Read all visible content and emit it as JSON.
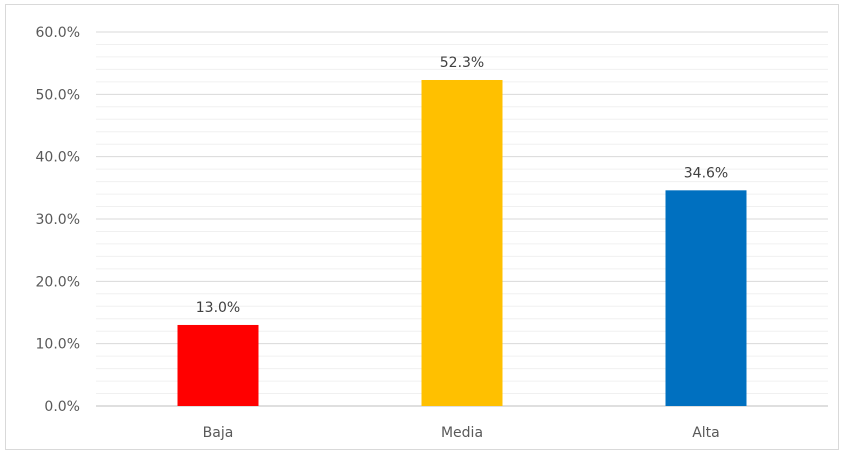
{
  "chart_data": {
    "type": "bar",
    "categories": [
      "Baja",
      "Media",
      "Alta"
    ],
    "values": [
      13.0,
      52.3,
      34.6
    ],
    "data_labels": [
      "13.0%",
      "52.3%",
      "34.6%"
    ],
    "colors": [
      "#ff0000",
      "#ffc000",
      "#0070c0"
    ],
    "title": "",
    "xlabel": "",
    "ylabel": "",
    "ylim": [
      0,
      60
    ],
    "y_ticks": [
      {
        "value": 0,
        "label": "0.0%"
      },
      {
        "value": 10,
        "label": "10.0%"
      },
      {
        "value": 20,
        "label": "20.0%"
      },
      {
        "value": 30,
        "label": "30.0%"
      },
      {
        "value": 40,
        "label": "40.0%"
      },
      {
        "value": 50,
        "label": "50.0%"
      },
      {
        "value": 60,
        "label": "60.0%"
      }
    ],
    "grid": true,
    "legend": "none"
  }
}
